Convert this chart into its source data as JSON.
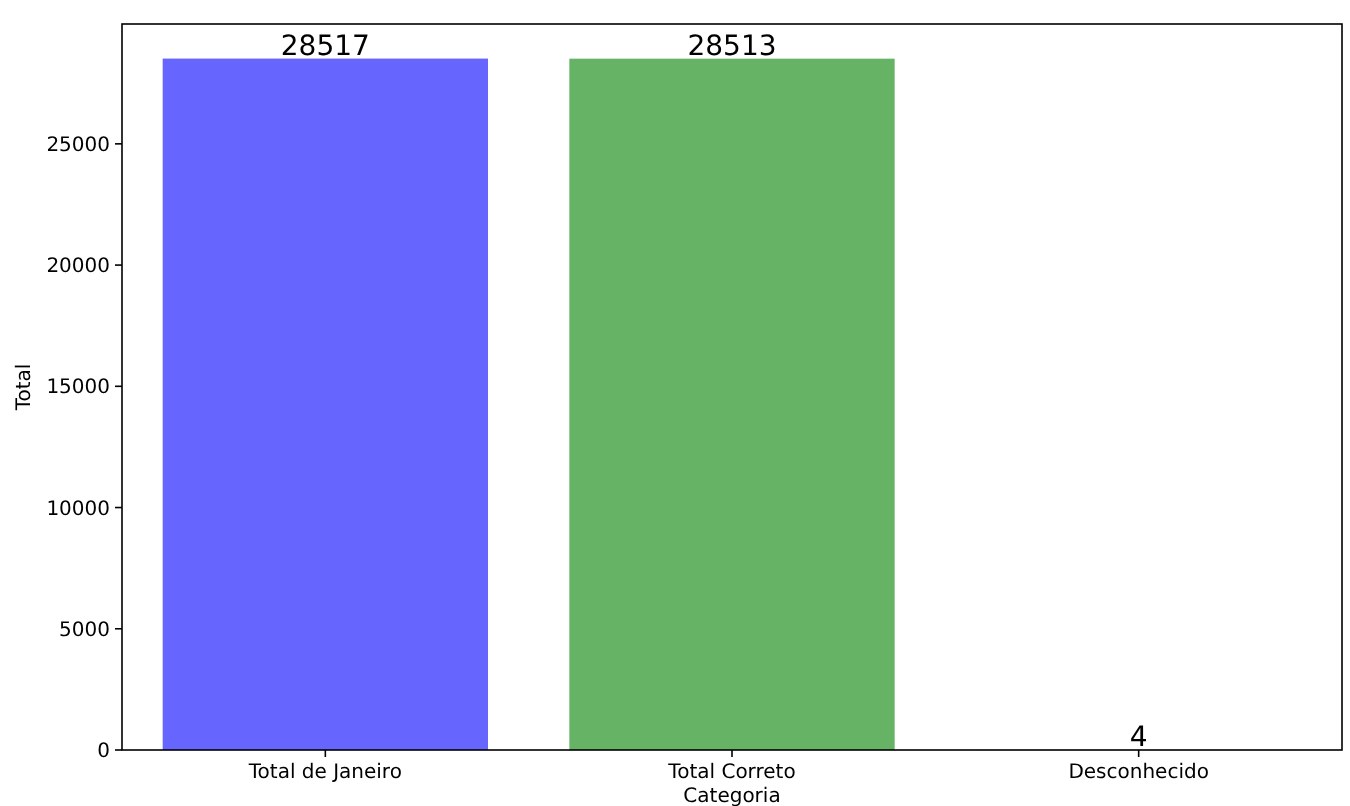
{
  "chart_data": {
    "type": "bar",
    "xlabel": "Categoria",
    "ylabel": "Total",
    "categories": [
      "Total de Janeiro",
      "Total Correto",
      "Desconhecido"
    ],
    "values": [
      28517,
      28513,
      4
    ],
    "colors": [
      "#6666ff",
      "#66b366",
      "#ff6666"
    ],
    "data_labels": true,
    "ylim": [
      0,
      29943
    ],
    "yticks": [
      0,
      5000,
      10000,
      15000,
      20000,
      25000
    ],
    "grid": false
  }
}
